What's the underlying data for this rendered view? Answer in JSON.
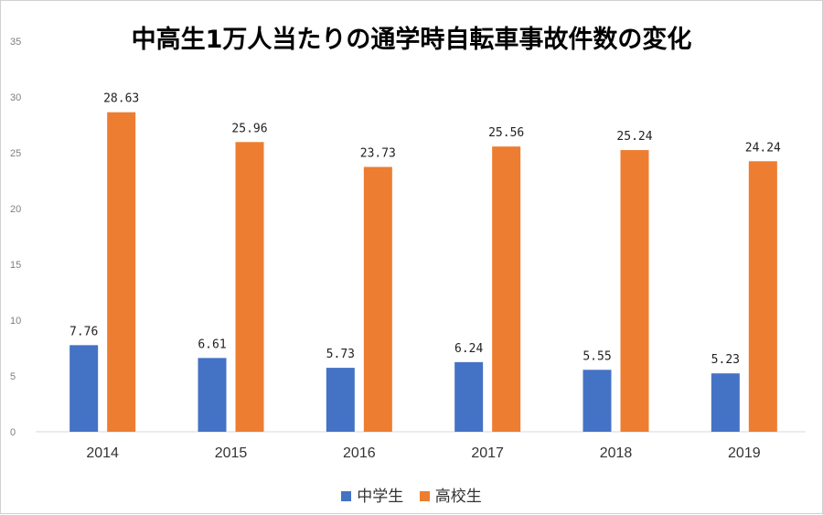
{
  "chart_data": {
    "type": "bar",
    "title": "中高生1万人当たりの通学時自転車事故件数の変化",
    "categories": [
      "2014",
      "2015",
      "2016",
      "2017",
      "2018",
      "2019"
    ],
    "series": [
      {
        "name": "中学生",
        "color": "#4472c4",
        "values": [
          7.76,
          6.61,
          5.73,
          6.24,
          5.55,
          5.23
        ],
        "labels": [
          "7.76",
          "6.61",
          "5.73",
          "6.24",
          "5.55",
          "5.23"
        ]
      },
      {
        "name": "高校生",
        "color": "#ed7d31",
        "values": [
          28.63,
          25.96,
          23.73,
          25.56,
          25.24,
          24.24
        ],
        "labels": [
          "28.63",
          "25.96",
          "23.73",
          "25.56",
          "25.24",
          "24.24"
        ]
      }
    ],
    "yticks": [
      "0",
      "5",
      "10",
      "15",
      "20",
      "25",
      "30",
      "35"
    ],
    "ylim": [
      0,
      35
    ],
    "grid": false,
    "legend_position": "bottom"
  }
}
